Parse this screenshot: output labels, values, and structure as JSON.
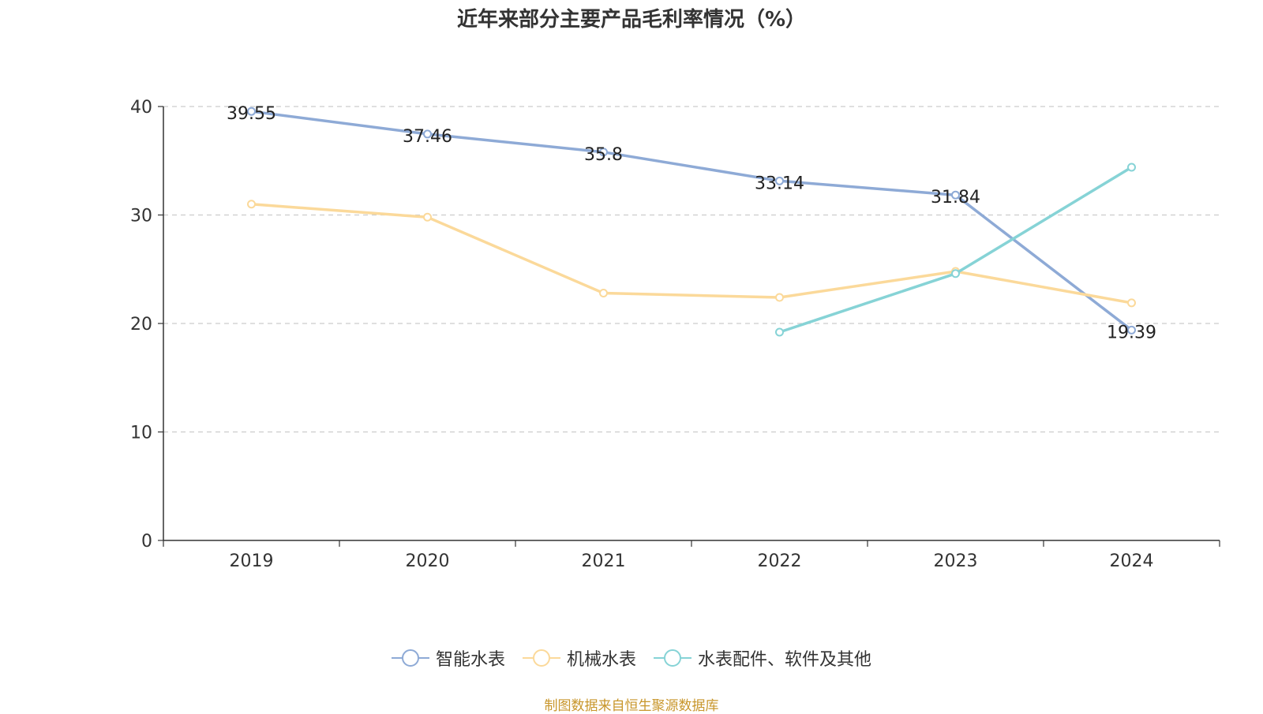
{
  "chart_data": {
    "type": "line",
    "title": "近年来部分主要产品毛利率情况（%）",
    "xlabel": "",
    "ylabel": "",
    "categories": [
      "2019",
      "2020",
      "2021",
      "2022",
      "2023",
      "2024"
    ],
    "ylim": [
      0,
      40
    ],
    "yticks": [
      0,
      10,
      20,
      30,
      40
    ],
    "grid": true,
    "legend_position": "bottom",
    "series": [
      {
        "name": "智能水表",
        "color": "#8eaad6",
        "values": [
          39.55,
          37.46,
          35.8,
          33.14,
          31.84,
          19.39
        ],
        "labels": [
          "39.55",
          "37.46",
          "35.8",
          "33.14",
          "31.84",
          "19.39"
        ]
      },
      {
        "name": "机械水表",
        "color": "#fbd99a",
        "values": [
          31.0,
          29.8,
          22.8,
          22.4,
          24.8,
          21.9
        ],
        "labels": []
      },
      {
        "name": "水表配件、软件及其他",
        "color": "#86d3d6",
        "values": [
          null,
          null,
          null,
          19.2,
          24.6,
          34.4
        ],
        "labels": []
      }
    ]
  },
  "source": "制图数据来自恒生聚源数据库"
}
